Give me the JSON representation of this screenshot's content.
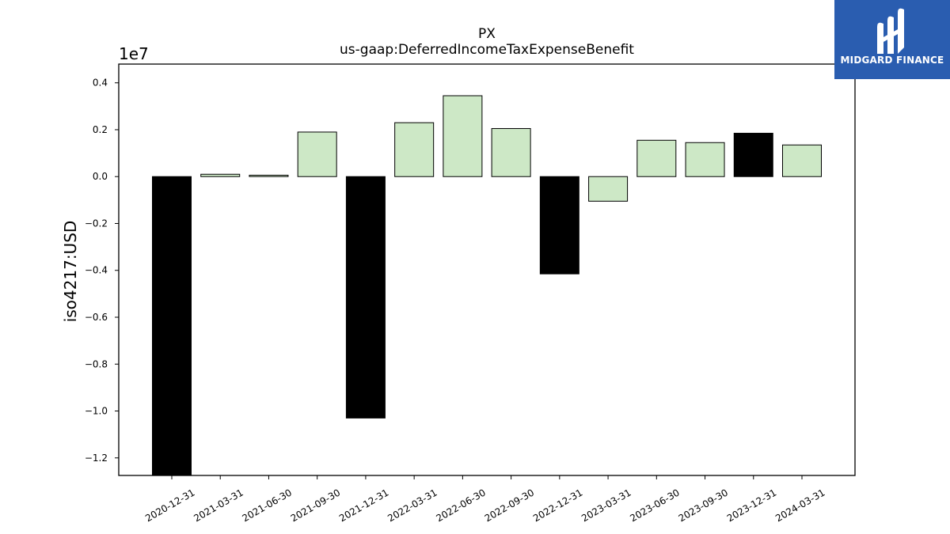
{
  "chart_data": {
    "type": "bar",
    "title": "PX",
    "subtitle": "us-gaap:DeferredIncomeTaxExpenseBenefit",
    "ylabel": "iso4217:USD",
    "xlabel": "",
    "y_scale_label": "1e7",
    "y_multiplier": 10000000,
    "ylim": [
      -1.275,
      0.48
    ],
    "yticks": [
      0.4,
      0.2,
      0.0,
      -0.2,
      -0.4,
      -0.6,
      -0.8,
      -1.0,
      -1.2
    ],
    "ytick_labels": [
      "0.4",
      "0.2",
      "0.0",
      "−0.2",
      "−0.4",
      "−0.6",
      "−0.8",
      "−1.0",
      "−1.2"
    ],
    "grid": false,
    "categories": [
      "2020-12-31",
      "2021-03-31",
      "2021-06-30",
      "2021-09-30",
      "2021-12-31",
      "2022-03-31",
      "2022-06-30",
      "2022-09-30",
      "2022-12-31",
      "2023-03-31",
      "2023-06-30",
      "2023-09-30",
      "2023-12-31",
      "2024-03-31"
    ],
    "values": [
      -12750000,
      100000,
      60000,
      1900000,
      -10300000,
      2300000,
      3450000,
      2050000,
      -4150000,
      -1050000,
      1550000,
      1450000,
      1850000,
      1350000
    ],
    "bar_colors": [
      "#000000",
      "#cde8c6",
      "#cde8c6",
      "#cde8c6",
      "#000000",
      "#cde8c6",
      "#cde8c6",
      "#cde8c6",
      "#000000",
      "#cde8c6",
      "#cde8c6",
      "#cde8c6",
      "#000000",
      "#cde8c6"
    ]
  },
  "logo": {
    "text": "MIDGARD FINANCE",
    "background": "#2a5db0"
  }
}
